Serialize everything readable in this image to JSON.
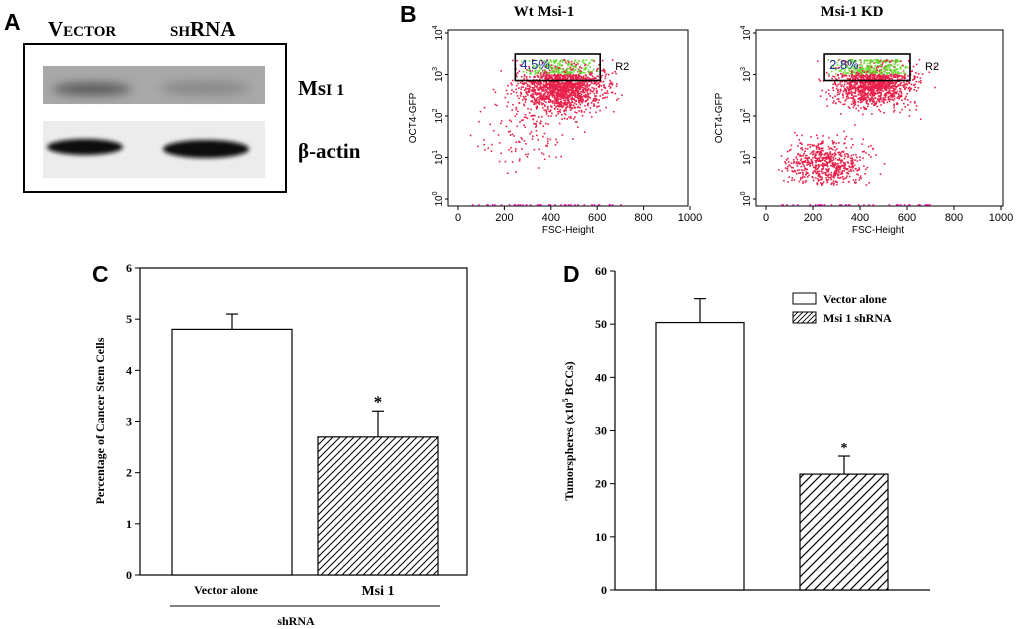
{
  "panels": {
    "a": "A",
    "b": "B",
    "c": "C",
    "d": "D"
  },
  "blot": {
    "lane_vector_cap": "V",
    "lane_vector_small": "ECTOR",
    "lane_shrna_small": "SH",
    "lane_shrna_cap": "RNA",
    "band_msi_cap": "Ms",
    "band_msi_small": "I 1",
    "band_actin": "β-actin"
  },
  "colors": {
    "dots_main": "#e8204a",
    "dots_gate": "#66dd33",
    "gate_label": "#1a2a9a",
    "ink": "#000000"
  },
  "chart_data": [
    {
      "type": "scatter",
      "title": "Wt Msi-1",
      "xlabel": "FSC-Height",
      "ylabel": "OCT4-GFP",
      "xlim": [
        0,
        1000
      ],
      "x_ticks": [
        "0",
        "200",
        "400",
        "600",
        "800",
        "1000"
      ],
      "y_scale": "log",
      "ylim": [
        1,
        10000
      ],
      "y_ticks": [
        "10",
        "10",
        "10",
        "10",
        "10"
      ],
      "y_tick_exponents": [
        "0",
        "1",
        "2",
        "3",
        "4"
      ],
      "gate": {
        "name": "R2",
        "percent": "4.5%",
        "x_range": [
          260,
          600
        ],
        "y_range": [
          800,
          2500
        ]
      },
      "populations": [
        {
          "name": "main",
          "cx": 450,
          "cy_log": 2.75,
          "sx": 85,
          "sy_log": 0.3,
          "n": 1700
        },
        {
          "name": "tail",
          "cx": 300,
          "cy_log": 1.6,
          "sx": 110,
          "sy_log": 0.45,
          "n": 140
        }
      ]
    },
    {
      "type": "scatter",
      "title": "Msi-1 KD",
      "xlabel": "FSC-Height",
      "ylabel": "OCT4-GFP",
      "xlim": [
        0,
        1000
      ],
      "x_ticks": [
        "0",
        "200",
        "400",
        "600",
        "800",
        "1000"
      ],
      "y_scale": "log",
      "ylim": [
        1,
        10000
      ],
      "y_ticks": [
        "10",
        "10",
        "10",
        "10",
        "10"
      ],
      "y_tick_exponents": [
        "0",
        "1",
        "2",
        "3",
        "4"
      ],
      "gate": {
        "name": "R2",
        "percent": "2.8%",
        "x_range": [
          260,
          600
        ],
        "y_range": [
          800,
          2500
        ]
      },
      "populations": [
        {
          "name": "main",
          "cx": 450,
          "cy_log": 2.85,
          "sx": 80,
          "sy_log": 0.3,
          "n": 1500
        },
        {
          "name": "low",
          "cx": 250,
          "cy_log": 0.85,
          "sx": 80,
          "sy_log": 0.28,
          "n": 650
        }
      ]
    },
    {
      "type": "bar",
      "ylabel": "Percentage of Cancer Stem Cells",
      "categories": [
        "Vector alone",
        "Msi 1"
      ],
      "group_label": "shRNA",
      "values": [
        4.8,
        2.7
      ],
      "errors": [
        0.3,
        0.5
      ],
      "patterns": [
        "solid",
        "hatch"
      ],
      "significance": [
        "",
        "*"
      ],
      "ylim": [
        0,
        6
      ],
      "y_ticks": [
        "0",
        "1",
        "2",
        "3",
        "4",
        "5",
        "6"
      ]
    },
    {
      "type": "bar",
      "ylabel": "Tumorspheres (x10",
      "ylabel_sup": "5",
      "ylabel_end": " BCCs)",
      "legend": [
        "Vector alone",
        "Msi 1 shRNA"
      ],
      "values": [
        50.3,
        21.8
      ],
      "errors": [
        4.5,
        3.4
      ],
      "patterns": [
        "solid",
        "hatch"
      ],
      "significance": [
        "",
        "*"
      ],
      "ylim": [
        0,
        60
      ],
      "y_ticks": [
        "0",
        "10",
        "20",
        "30",
        "40",
        "50",
        "60"
      ]
    }
  ]
}
